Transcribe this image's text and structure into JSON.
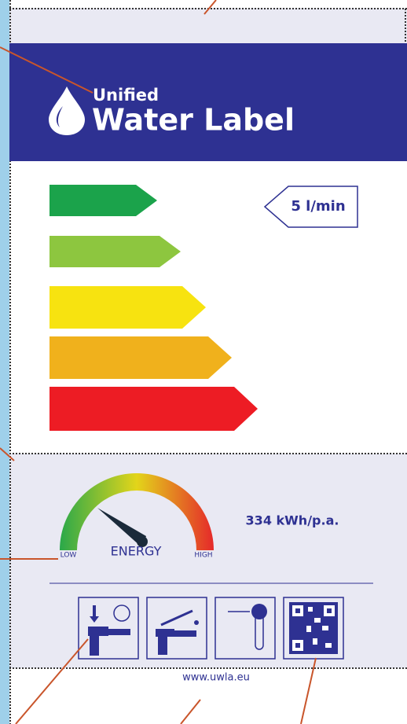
{
  "brand": {
    "prefix": "Unified",
    "title": "Water Label"
  },
  "flow": {
    "label": "5 l/min"
  },
  "energy": {
    "low": "LOW",
    "label": "ENERGY",
    "high": "HIGH",
    "consumption": "334 kWh/p.a."
  },
  "footer": {
    "url": "www.uwla.eu"
  }
}
